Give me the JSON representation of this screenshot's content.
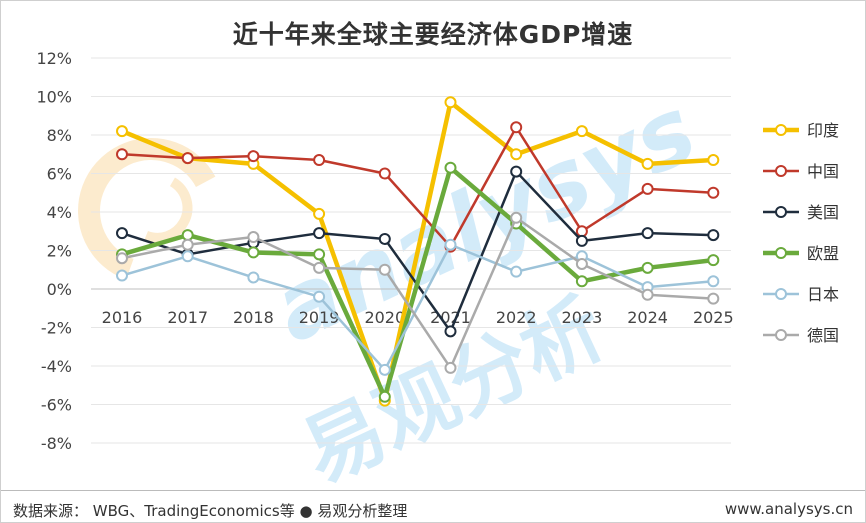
{
  "chart_data": {
    "type": "line",
    "title": "近十年来全球主要经济体GDP增速",
    "x": [
      "2016",
      "2017",
      "2018",
      "2019",
      "2020",
      "2021",
      "2022",
      "2023",
      "2024",
      "2025"
    ],
    "ylim": [
      -8,
      12
    ],
    "yticks": [
      "12%",
      "10%",
      "8%",
      "6%",
      "4%",
      "2%",
      "0%",
      "-2%",
      "-4%",
      "-6%",
      "-8%"
    ],
    "ytick_values": [
      12,
      10,
      8,
      6,
      4,
      2,
      0,
      -2,
      -4,
      -6,
      -8
    ],
    "grid": "horizontal",
    "legend_position": "right",
    "series": [
      {
        "name": "印度",
        "color": "#F5C000",
        "bold": true,
        "values": [
          8.2,
          6.8,
          6.5,
          3.9,
          -5.8,
          9.7,
          7.0,
          8.2,
          6.5,
          6.7
        ]
      },
      {
        "name": "中国",
        "color": "#C0392B",
        "bold": false,
        "values": [
          7.0,
          6.8,
          6.9,
          6.7,
          6.0,
          2.2,
          8.4,
          3.0,
          5.2,
          5.0
        ]
      },
      {
        "name": "美国",
        "color": "#1F2D3D",
        "bold": false,
        "values": [
          2.9,
          1.8,
          2.4,
          2.9,
          2.6,
          -2.2,
          6.1,
          2.5,
          2.9,
          2.8
        ]
      },
      {
        "name": "欧盟",
        "color": "#6AAA3C",
        "bold": true,
        "values": [
          1.8,
          2.8,
          1.9,
          1.8,
          -5.6,
          6.3,
          3.4,
          0.4,
          1.1,
          1.5
        ]
      },
      {
        "name": "日本",
        "color": "#9DC3D9",
        "bold": false,
        "values": [
          0.7,
          1.7,
          0.6,
          -0.4,
          -4.2,
          2.3,
          0.9,
          1.7,
          0.1,
          0.4
        ]
      },
      {
        "name": "德国",
        "color": "#AAAAAA",
        "bold": false,
        "values": [
          1.6,
          2.3,
          2.7,
          1.1,
          1.0,
          -4.1,
          3.7,
          1.3,
          -0.3,
          -0.5
        ]
      }
    ]
  },
  "watermark": {
    "latin": "analysys",
    "chinese": "易观分析"
  },
  "footer": {
    "source": "数据来源： WBG、TradingEconomics等 ● 易观分析整理",
    "site": "www.analysys.cn"
  }
}
